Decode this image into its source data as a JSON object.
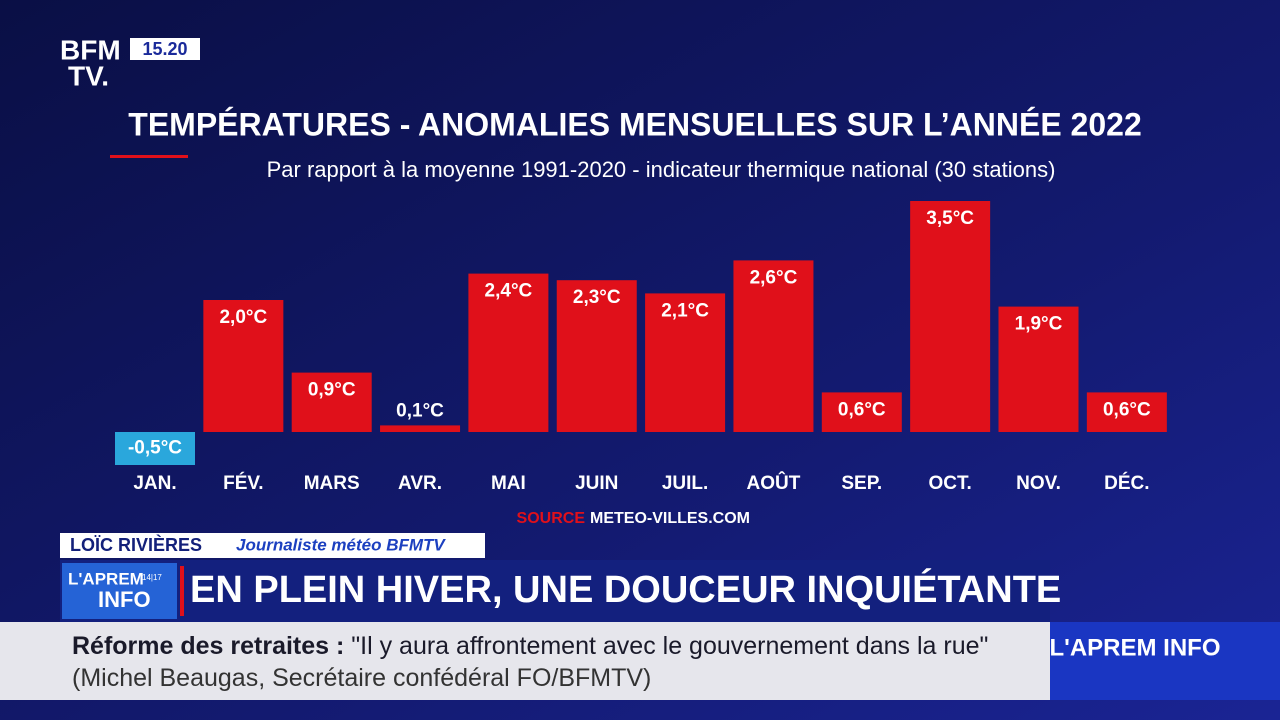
{
  "channel": {
    "logo": "BFM",
    "logo_line2": "TV.",
    "clock": "15.20"
  },
  "chart_data": {
    "type": "bar",
    "title": "TEMPÉRATURES - ANOMALIES MENSUELLES SUR L’ANNÉE 2022",
    "subtitle": "Par rapport à la moyenne 1991-2020 - indicateur thermique national (30 stations)",
    "categories": [
      "JAN.",
      "FÉV.",
      "MARS",
      "AVR.",
      "MAI",
      "JUIN",
      "JUIL.",
      "AOÛT",
      "SEP.",
      "OCT.",
      "NOV.",
      "DÉC."
    ],
    "values": [
      -0.5,
      2.0,
      0.9,
      0.1,
      2.4,
      2.3,
      2.1,
      2.6,
      0.6,
      3.5,
      1.9,
      0.6
    ],
    "value_labels": [
      "-0,5°C",
      "2,0°C",
      "0,9°C",
      "0,1°C",
      "2,4°C",
      "2,3°C",
      "2,1°C",
      "2,6°C",
      "0,6°C",
      "3,5°C",
      "1,9°C",
      "0,6°C"
    ],
    "color": "#e0101a",
    "negative_color": "#2aa7dc",
    "source_label": "SOURCE",
    "source": "METEO-VILLES.COM"
  },
  "lower_third": {
    "name": "LOÏC RIVIÈRES",
    "role": "Journaliste météo BFMTV",
    "program": {
      "line1": "L'APREM",
      "time": "14|17",
      "line2": "INFO"
    },
    "headline": "EN PLEIN HIVER, UNE DOUCEUR INQUIÉTANTE"
  },
  "ticker": {
    "topic": "Réforme des retraites :",
    "quote": "\"Il y aura affrontement avec le gouvernement dans la rue\"",
    "attribution": "(Michel Beaugas, Secrétaire confédéral FO/BFMTV)",
    "program": "L'APREM INFO"
  }
}
